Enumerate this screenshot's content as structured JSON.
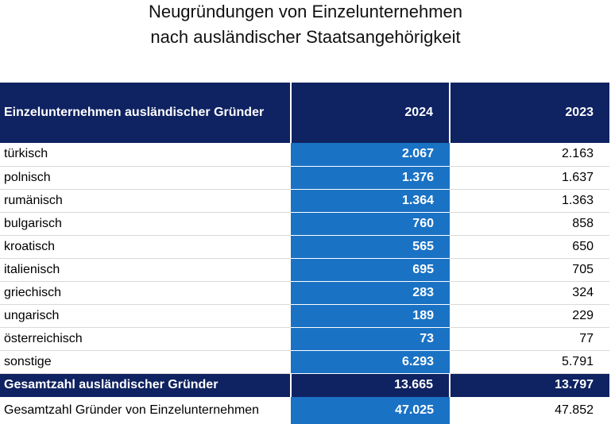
{
  "title": {
    "line1": "Neugründungen von Einzelunternehmen",
    "line2": "nach ausländischer Staatsangehörigkeit"
  },
  "colors": {
    "header_bg": "#0f2261",
    "highlight_col": "#1a72c4"
  },
  "chart_data": {
    "type": "table",
    "columns": [
      "Einzelunternehmen ausländischer Gründer",
      "2024",
      "2023"
    ],
    "rows": [
      {
        "label": "türkisch",
        "v2024": "2.067",
        "v2023": "2.163"
      },
      {
        "label": "polnisch",
        "v2024": "1.376",
        "v2023": "1.637"
      },
      {
        "label": "rumänisch",
        "v2024": "1.364",
        "v2023": "1.363"
      },
      {
        "label": "bulgarisch",
        "v2024": "760",
        "v2023": "858"
      },
      {
        "label": "kroatisch",
        "v2024": "565",
        "v2023": "650"
      },
      {
        "label": "italienisch",
        "v2024": "695",
        "v2023": "705"
      },
      {
        "label": "griechisch",
        "v2024": "283",
        "v2023": "324"
      },
      {
        "label": "ungarisch",
        "v2024": "189",
        "v2023": "229"
      },
      {
        "label": "österreichisch",
        "v2024": "73",
        "v2023": "77"
      },
      {
        "label": "sonstige",
        "v2024": "6.293",
        "v2023": "5.791"
      }
    ],
    "total": {
      "label": "Gesamtzahl ausländischer Gründer",
      "v2024": "13.665",
      "v2023": "13.797"
    },
    "grand_total": {
      "label": "Gesamtzahl Gründer von Einzelunternehmen",
      "v2024": "47.025",
      "v2023": "47.852"
    }
  }
}
